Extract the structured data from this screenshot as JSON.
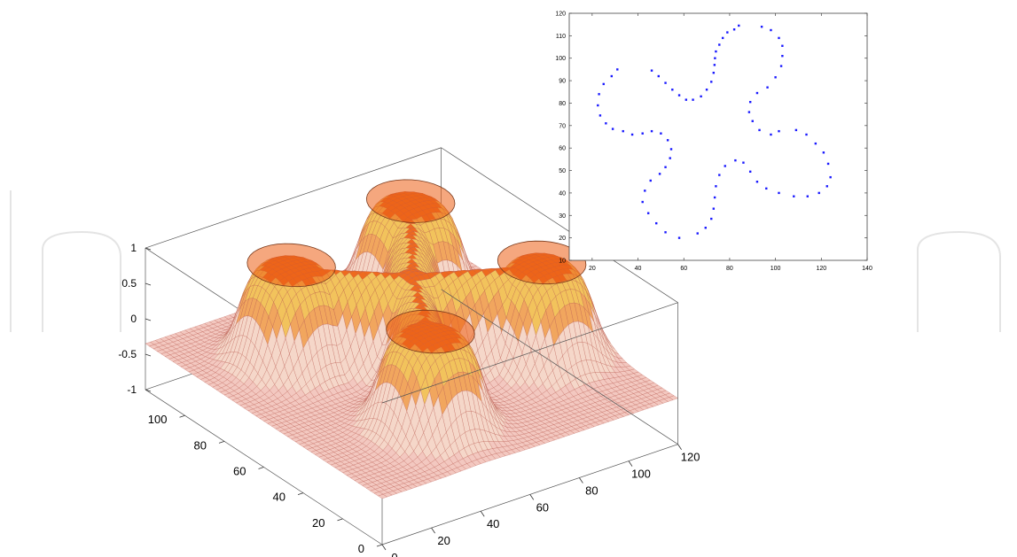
{
  "chart_data": [
    {
      "type": "surface",
      "title": "",
      "xlabel": "",
      "ylabel": "",
      "zlabel": "",
      "x_range": [
        0,
        120
      ],
      "y_range": [
        0,
        120
      ],
      "z_range": [
        -1,
        1
      ],
      "x_ticks": [
        "0",
        "20",
        "40",
        "60",
        "80",
        "100",
        "120"
      ],
      "y_ticks": [
        "0",
        "20",
        "40",
        "60",
        "80",
        "100"
      ],
      "z_ticks": [
        "-1",
        "-0.5",
        "0",
        "0.5",
        "1"
      ],
      "base_level": -0.35,
      "lobes": [
        {
          "x": 62,
          "y": 62,
          "r": 12
        },
        {
          "x": 100,
          "y": 44,
          "r": 17
        },
        {
          "x": 90,
          "y": 98,
          "r": 17
        },
        {
          "x": 32,
          "y": 86,
          "r": 17
        },
        {
          "x": 42,
          "y": 28,
          "r": 17
        }
      ],
      "colors": {
        "mesh": "#b8574a",
        "base_fill": "#f3c8c0",
        "plateau": "#ee6a1f",
        "ridge": "#f2c35c"
      }
    },
    {
      "type": "scatter",
      "title": "",
      "xlabel": "",
      "ylabel": "",
      "xlim": [
        10,
        140
      ],
      "ylim": [
        10,
        120
      ],
      "x_ticks": [
        "20",
        "40",
        "60",
        "80",
        "100",
        "120",
        "140"
      ],
      "y_ticks": [
        "10",
        "20",
        "30",
        "40",
        "50",
        "60",
        "70",
        "80",
        "90",
        "100",
        "110",
        "120"
      ],
      "marker_color": "#1a1aff",
      "points": [
        [
          84,
          114.5
        ],
        [
          82,
          112.8
        ],
        [
          79,
          111.5
        ],
        [
          77,
          109
        ],
        [
          75.5,
          106
        ],
        [
          74,
          103
        ],
        [
          73.6,
          100
        ],
        [
          73.4,
          97
        ],
        [
          73,
          93.5
        ],
        [
          72,
          89.5
        ],
        [
          70,
          86
        ],
        [
          67.5,
          83
        ],
        [
          64,
          81.5
        ],
        [
          61,
          81.5
        ],
        [
          58,
          83.5
        ],
        [
          55,
          86
        ],
        [
          52,
          89
        ],
        [
          49,
          92
        ],
        [
          46,
          94.5
        ],
        [
          94,
          114
        ],
        [
          98,
          112.5
        ],
        [
          101.5,
          109
        ],
        [
          103,
          105.5
        ],
        [
          103,
          101
        ],
        [
          102.5,
          96.5
        ],
        [
          100,
          91.5
        ],
        [
          96.5,
          87
        ],
        [
          92,
          84.5
        ],
        [
          89,
          80.5
        ],
        [
          88.5,
          76
        ],
        [
          90,
          72
        ],
        [
          93,
          68
        ],
        [
          98,
          66
        ],
        [
          101.5,
          67.5
        ],
        [
          109,
          68
        ],
        [
          113.5,
          66
        ],
        [
          117.5,
          62
        ],
        [
          121,
          58
        ],
        [
          123,
          53
        ],
        [
          124,
          47
        ],
        [
          122.5,
          43
        ],
        [
          119,
          40
        ],
        [
          114,
          38.5
        ],
        [
          108,
          38.5
        ],
        [
          101.5,
          40
        ],
        [
          96,
          42
        ],
        [
          92,
          45
        ],
        [
          89,
          49.5
        ],
        [
          86,
          53.5
        ],
        [
          82.5,
          54.5
        ],
        [
          78,
          52
        ],
        [
          75.5,
          48
        ],
        [
          74,
          43
        ],
        [
          73.5,
          38
        ],
        [
          73,
          33
        ],
        [
          72,
          28.5
        ],
        [
          69.5,
          24.5
        ],
        [
          66,
          22
        ],
        [
          58,
          20
        ],
        [
          52,
          22.5
        ],
        [
          48,
          26.5
        ],
        [
          44.5,
          31
        ],
        [
          42,
          36
        ],
        [
          43,
          41
        ],
        [
          45.5,
          45.5
        ],
        [
          49.5,
          48.5
        ],
        [
          52,
          51.5
        ],
        [
          54,
          55.5
        ],
        [
          54.5,
          59.5
        ],
        [
          53,
          63.5
        ],
        [
          50,
          66.5
        ],
        [
          46,
          67.5
        ],
        [
          42,
          66.5
        ],
        [
          37.5,
          66
        ],
        [
          33.5,
          67.5
        ],
        [
          29,
          68.5
        ],
        [
          26,
          71
        ],
        [
          23.5,
          74.5
        ],
        [
          22.5,
          79
        ],
        [
          23,
          84
        ],
        [
          25,
          88.5
        ],
        [
          28.5,
          92
        ],
        [
          31,
          95
        ]
      ]
    }
  ]
}
